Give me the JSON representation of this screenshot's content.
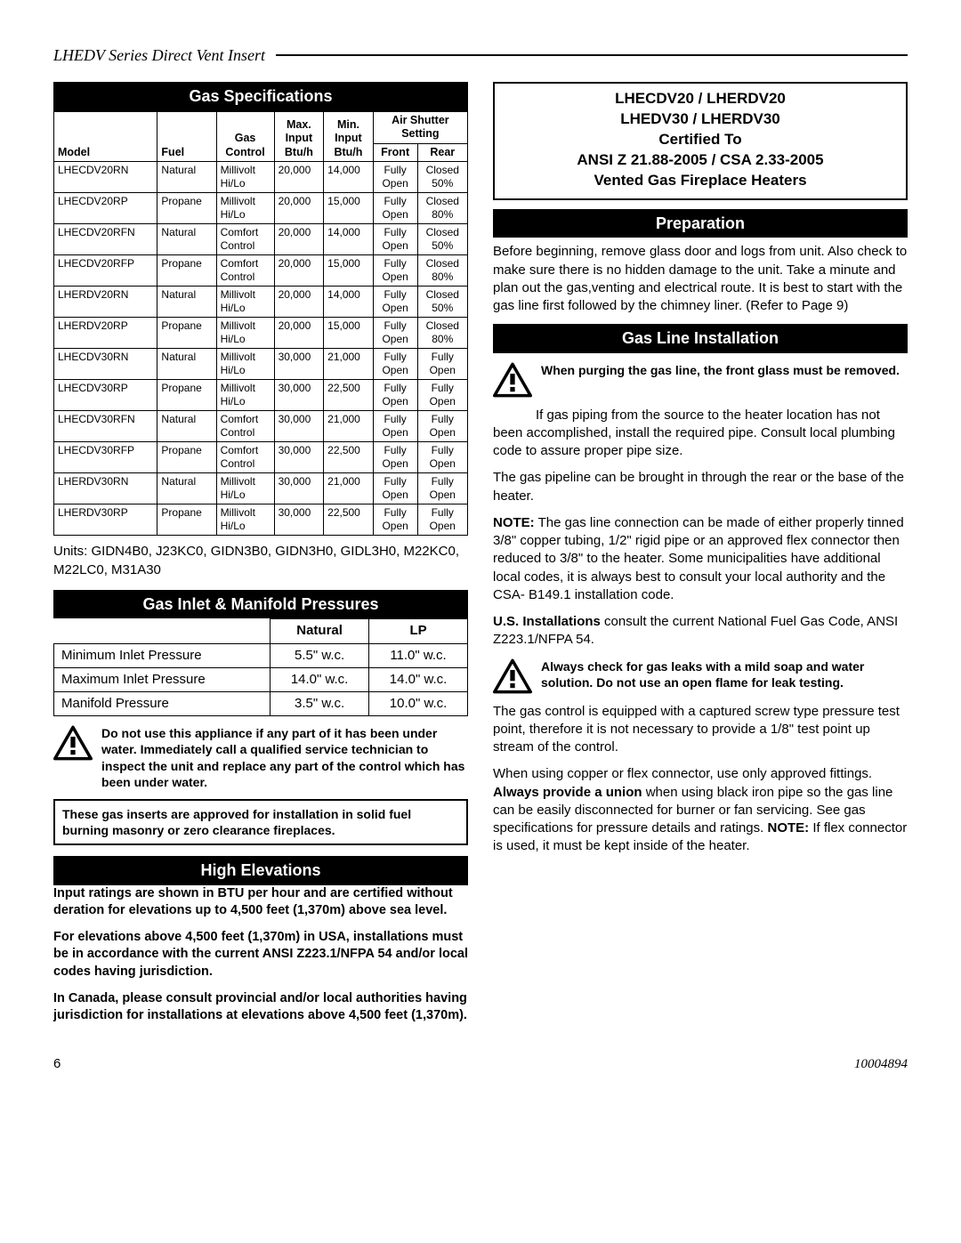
{
  "header_title": "LHEDV Series Direct Vent Insert",
  "page_number": "6",
  "document_number": "10004894",
  "gas_spec": {
    "title": "Gas Specifications",
    "headers": {
      "model": "Model",
      "fuel": "Fuel",
      "gas_control": "Gas Control",
      "max_input": "Max. Input Btu/h",
      "min_input": "Min. Input Btu/h",
      "air_shutter": "Air Shutter Setting",
      "front": "Front",
      "rear": "Rear"
    },
    "rows": [
      {
        "model": "LHECDV20RN",
        "fuel": "Natural",
        "control": "Millivolt Hi/Lo",
        "max": "20,000",
        "min": "14,000",
        "front": "Fully Open",
        "rear": "Closed 50%"
      },
      {
        "model": "LHECDV20RP",
        "fuel": "Propane",
        "control": "Millivolt Hi/Lo",
        "max": "20,000",
        "min": "15,000",
        "front": "Fully Open",
        "rear": "Closed 80%"
      },
      {
        "model": "LHECDV20RFN",
        "fuel": "Natural",
        "control": "Comfort Control",
        "max": "20,000",
        "min": "14,000",
        "front": "Fully Open",
        "rear": "Closed 50%"
      },
      {
        "model": "LHECDV20RFP",
        "fuel": "Propane",
        "control": "Comfort Control",
        "max": "20,000",
        "min": "15,000",
        "front": "Fully Open",
        "rear": "Closed 80%"
      },
      {
        "model": "LHERDV20RN",
        "fuel": "Natural",
        "control": "Millivolt Hi/Lo",
        "max": "20,000",
        "min": "14,000",
        "front": "Fully Open",
        "rear": "Closed 50%"
      },
      {
        "model": "LHERDV20RP",
        "fuel": "Propane",
        "control": "Millivolt Hi/Lo",
        "max": "20,000",
        "min": "15,000",
        "front": "Fully Open",
        "rear": "Closed 80%"
      },
      {
        "model": "LHECDV30RN",
        "fuel": "Natural",
        "control": "Millivolt Hi/Lo",
        "max": "30,000",
        "min": "21,000",
        "front": "Fully Open",
        "rear": "Fully Open"
      },
      {
        "model": "LHECDV30RP",
        "fuel": "Propane",
        "control": "Millivolt Hi/Lo",
        "max": "30,000",
        "min": "22,500",
        "front": "Fully Open",
        "rear": "Fully Open"
      },
      {
        "model": "LHECDV30RFN",
        "fuel": "Natural",
        "control": "Comfort Control",
        "max": "30,000",
        "min": "21,000",
        "front": "Fully Open",
        "rear": "Fully Open"
      },
      {
        "model": "LHECDV30RFP",
        "fuel": "Propane",
        "control": "Comfort Control",
        "max": "30,000",
        "min": "22,500",
        "front": "Fully Open",
        "rear": "Fully Open"
      },
      {
        "model": "LHERDV30RN",
        "fuel": "Natural",
        "control": "Millivolt Hi/Lo",
        "max": "30,000",
        "min": "21,000",
        "front": "Fully Open",
        "rear": "Fully Open"
      },
      {
        "model": "LHERDV30RP",
        "fuel": "Propane",
        "control": "Millivolt Hi/Lo",
        "max": "30,000",
        "min": "22,500",
        "front": "Fully Open",
        "rear": "Fully Open"
      }
    ],
    "units_text": "Units: GIDN4B0, J23KC0, GIDN3B0, GIDN3H0, GIDL3H0, M22KC0, M22LC0, M31A30"
  },
  "pressures": {
    "title": "Gas Inlet & Manifold Pressures",
    "col_nat": "Natural",
    "col_lp": "LP",
    "rows": [
      {
        "label": "Minimum Inlet Pressure",
        "nat": "5.5\" w.c.",
        "lp": "11.0\" w.c."
      },
      {
        "label": "Maximum Inlet Pressure",
        "nat": "14.0\" w.c.",
        "lp": "14.0\" w.c."
      },
      {
        "label": "Manifold Pressure",
        "nat": "3.5\" w.c.",
        "lp": "10.0\" w.c."
      }
    ]
  },
  "under_water_warning": "Do not use this appliance if any part of it has been under water.  Immediately call a qualified service technician to inspect the unit and replace any part of the control which has been under water.",
  "insert_approval_box": "These gas inserts are approved for installation in solid fuel burning masonry or zero clearance fireplaces.",
  "high_elev": {
    "title": "High Elevations",
    "p1": "Input ratings are shown in BTU per hour and are certified without deration for elevations up to 4,500 feet (1,370m) above sea level.",
    "p2": "For elevations above 4,500 feet (1,370m) in USA, installations must be in accordance with the current ANSI Z223.1/NFPA 54 and/or local codes having jurisdiction.",
    "p3": "In Canada, please consult provincial and/or local authorities having jurisdiction for installations at elevations above 4,500 feet (1,370m)."
  },
  "cert": {
    "l1": "LHECDV20 / LHERDV20",
    "l2": "LHEDV30 / LHERDV30",
    "l3": "Certified To",
    "l4": "ANSI Z 21.88-2005 / CSA 2.33-2005",
    "l5": "Vented Gas Fireplace Heaters"
  },
  "prep": {
    "title": "Preparation",
    "text": "Before beginning, remove glass door and logs from unit. Also check to make sure there is no hidden damage to the unit. Take a minute and plan out the gas,venting and electrical route. It is best to start with the gas line first followed by the chimney liner. (Refer to Page 9)"
  },
  "gasline": {
    "title": "Gas Line Installation",
    "warn1": "When purging the gas line, the front glass must be removed.",
    "p1": "If gas piping from the source to the heater location has not been accomplished, install the required pipe. Consult local plumbing code to assure proper pipe size.",
    "p2": "The gas pipeline can be brought in through the rear or the base of the heater.",
    "p3_label": "NOTE:",
    "p3": "  The gas line connection can be made of either properly tinned 3/8\" copper tubing, 1/2\" rigid pipe or an approved flex connector then reduced to 3/8\" to the heater. Some municipalities have additional local codes, it is always best to consult your local authority and the CSA- B149.1 installation code.",
    "p4_label": "U.S. Installations",
    "p4": " consult the current National Fuel Gas Code, ANSI Z223.1/NFPA 54.",
    "warn2": "Always check for gas leaks with a mild soap and water solution.   Do not use an open flame for leak testing.",
    "p5": "The gas control is equipped with a captured screw type pressure test point, therefore it is not necessary to provide a 1/8\" test point up stream of the control.",
    "p6a": "When using copper or flex connector, use only approved fittings. ",
    "p6b": "Always provide a union",
    "p6c": " when using black iron pipe so the gas line can be easily disconnected for burner or fan servicing. See gas specifications for pressure details and ratings. ",
    "p6d": "NOTE:",
    "p6e": " If flex connector is used, it must be kept inside of the heater."
  },
  "colors": {
    "black": "#000000",
    "white": "#ffffff"
  }
}
